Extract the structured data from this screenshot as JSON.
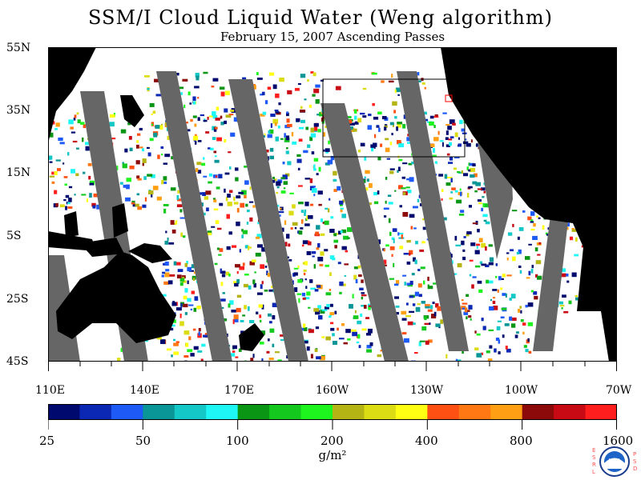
{
  "title": "SSM/I Cloud Liquid Water (Weng algorithm)",
  "subtitle": "February 15, 2007  Ascending Passes",
  "lat_labels": [
    "55N",
    "35N",
    "15N",
    "5S",
    "25S",
    "45S"
  ],
  "lon_labels": [
    "110E",
    "140E",
    "170E",
    "160W",
    "130W",
    "100W",
    "70W"
  ],
  "colorbar": {
    "ticks": [
      "25",
      "50",
      "100",
      "200",
      "400",
      "800",
      "1600"
    ],
    "colors": [
      "#000a6e",
      "#0a28b4",
      "#1e5af5",
      "#0a9696",
      "#14c8c8",
      "#1ef5f5",
      "#0a9614",
      "#14c81e",
      "#1ef51e",
      "#b4b414",
      "#dcdc14",
      "#ffff14",
      "#ff5014",
      "#ff7814",
      "#ffa014",
      "#8c0a0a",
      "#c80a14",
      "#ff1e1e"
    ],
    "units": "g/m²"
  },
  "colors": {
    "land": "#000000",
    "no_data": "#646464",
    "ocean_clear": "#ffffff",
    "box": "#000000"
  },
  "logo": {
    "left_letters": "ESRL",
    "right_letters": "PSD",
    "center": "NOAA"
  }
}
